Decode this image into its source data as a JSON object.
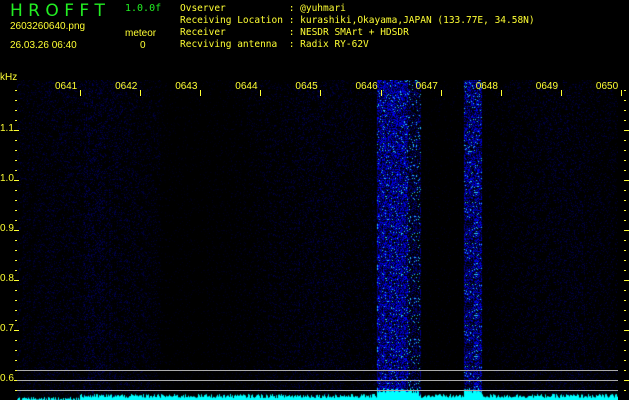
{
  "header": {
    "app_title": "H R O F F T",
    "version": "1.0.0f",
    "file_name": "2603260640.png",
    "datetime": "26.03.26 06:40",
    "meteor_label": "meteor",
    "meteor_count": "0"
  },
  "info": [
    {
      "label": "Ovserver          ",
      "value": ": @yuhmari"
    },
    {
      "label": "Receiving Location",
      "value": ": kurashiki,Okayama,JAPAN (133.77E, 34.58N)"
    },
    {
      "label": "Receiver          ",
      "value": ": NESDR SMArt + HDSDR"
    },
    {
      "label": "Recviving antenna ",
      "value": ": Radix RY-62V"
    }
  ],
  "axis": {
    "unit": "kHz",
    "freq_labels": [
      "1.1",
      "1.0",
      "0.9",
      "0.8",
      "0.7",
      "0.6"
    ],
    "time_labels": [
      "0641",
      "0642",
      "0643",
      "0644",
      "0645",
      "0646",
      "0647",
      "0648",
      "0649",
      "0650"
    ]
  },
  "colors": {
    "text": "#ffff33",
    "title": "#22ee22",
    "signal": "#00ffff",
    "noise": "#1020c0",
    "guide_lines": "#aaaaaa"
  }
}
